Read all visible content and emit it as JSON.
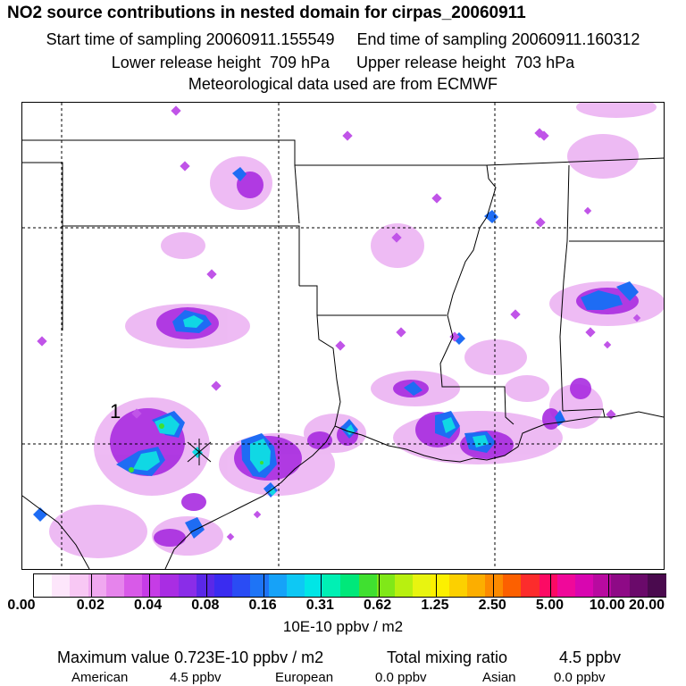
{
  "header": {
    "title": "NO2 source contributions in nested domain for cirpas_20060911",
    "start_label": "Start time of sampling",
    "start_value": "20060911.155549",
    "end_label": "End time of sampling",
    "end_value": "20060911.160312",
    "lower_label": "Lower release height",
    "lower_value": "709 hPa",
    "upper_label": "Upper release height",
    "upper_value": "703 hPa",
    "met_line": "Meteorological data used are from ECMWF"
  },
  "map": {
    "source_label": "1"
  },
  "colorbar": {
    "colors": [
      "#ffffff",
      "#fde6fb",
      "#f8c8f4",
      "#f0a8f0",
      "#e684ec",
      "#d85ae8",
      "#c63ce6",
      "#a92de3",
      "#8a2de8",
      "#5a28e8",
      "#3a2cf0",
      "#2a4cf4",
      "#1e74f6",
      "#16a2f8",
      "#0ec8f4",
      "#00e6e6",
      "#00f0b4",
      "#00e87a",
      "#40e030",
      "#80e818",
      "#b8f010",
      "#e8f410",
      "#fcf000",
      "#fcd000",
      "#fcae00",
      "#fc8a00",
      "#fc6000",
      "#fc2c2c",
      "#fc0a64",
      "#f0089a",
      "#d806b0",
      "#b80aa0",
      "#8e0a86",
      "#6a0a6a",
      "#4a0a4e"
    ],
    "tick_labels": [
      "0.00",
      "0.02",
      "0.04",
      "0.08",
      "0.16",
      "0.31",
      "0.62",
      "1.25",
      "2.50",
      "5.00",
      "10.00",
      "20.00"
    ],
    "units": "10E-10 ppbv / m2"
  },
  "stats": {
    "max_label": "Maximum value",
    "max_value": "0.723E-10 ppbv / m2",
    "total_label": "Total mixing ratio",
    "total_value": "4.5 ppbv",
    "american_label": "American",
    "american_value": "4.5 ppbv",
    "european_label": "European",
    "european_value": "0.0 ppbv",
    "asian_label": "Asian",
    "asian_value": "0.0 ppbv"
  }
}
